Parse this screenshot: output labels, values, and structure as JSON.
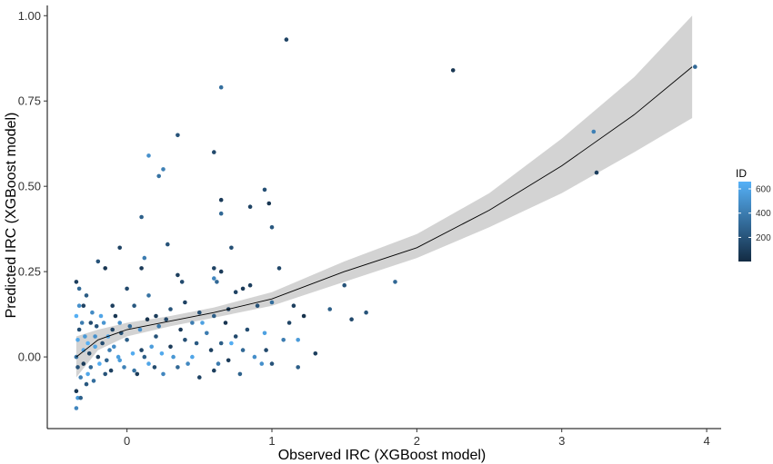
{
  "chart_data": {
    "type": "scatter",
    "title": "",
    "xlabel": "Observed IRC (XGBoost model)",
    "ylabel": "Predicted IRC (XGBoost model)",
    "xlim": [
      -0.55,
      4.1
    ],
    "ylim": [
      -0.21,
      1.03
    ],
    "x_ticks": [
      0,
      1,
      2,
      3,
      4
    ],
    "y_ticks": [
      0.0,
      0.25,
      0.5,
      0.75,
      1.0
    ],
    "x_tick_labels": [
      "0",
      "1",
      "2",
      "3",
      "4"
    ],
    "y_tick_labels": [
      "0.00",
      "0.25",
      "0.50",
      "0.75",
      "1.00"
    ],
    "grid": false,
    "legend": {
      "title": "ID",
      "placement": "right",
      "range": [
        1,
        660
      ],
      "ticks": [
        200,
        400,
        600
      ],
      "tick_labels": [
        "200",
        "400",
        "600"
      ],
      "colors": [
        "#132B43",
        "#56B1F7"
      ]
    },
    "smooth": {
      "color": "#000000",
      "band_color": "#D3D3D3",
      "x": [
        -0.35,
        -0.2,
        0.0,
        0.3,
        0.6,
        1.0,
        1.5,
        2.0,
        2.5,
        3.0,
        3.5,
        3.9
      ],
      "y": [
        0.0,
        0.05,
        0.08,
        0.105,
        0.13,
        0.17,
        0.25,
        0.32,
        0.43,
        0.56,
        0.71,
        0.85
      ],
      "lower": [
        -0.06,
        0.02,
        0.06,
        0.09,
        0.115,
        0.15,
        0.22,
        0.29,
        0.38,
        0.48,
        0.6,
        0.7
      ],
      "upper": [
        0.06,
        0.08,
        0.1,
        0.12,
        0.145,
        0.19,
        0.28,
        0.36,
        0.48,
        0.64,
        0.82,
        1.0
      ]
    },
    "points": [
      {
        "x": 1.1,
        "y": 0.93,
        "id": 120
      },
      {
        "x": 2.25,
        "y": 0.84,
        "id": 60
      },
      {
        "x": 3.92,
        "y": 0.85,
        "id": 300
      },
      {
        "x": 0.65,
        "y": 0.79,
        "id": 330
      },
      {
        "x": 3.22,
        "y": 0.66,
        "id": 420
      },
      {
        "x": 3.24,
        "y": 0.54,
        "id": 100
      },
      {
        "x": 0.35,
        "y": 0.65,
        "id": 200
      },
      {
        "x": 0.15,
        "y": 0.59,
        "id": 500
      },
      {
        "x": 0.22,
        "y": 0.53,
        "id": 350
      },
      {
        "x": 0.25,
        "y": 0.55,
        "id": 420
      },
      {
        "x": 0.6,
        "y": 0.6,
        "id": 150
      },
      {
        "x": 0.95,
        "y": 0.49,
        "id": 180
      },
      {
        "x": 0.65,
        "y": 0.46,
        "id": 80
      },
      {
        "x": 0.85,
        "y": 0.44,
        "id": 120
      },
      {
        "x": 0.1,
        "y": 0.41,
        "id": 260
      },
      {
        "x": 0.65,
        "y": 0.42,
        "id": 300
      },
      {
        "x": 1.0,
        "y": 0.38,
        "id": 220
      },
      {
        "x": 0.98,
        "y": 0.45,
        "id": 60
      },
      {
        "x": 0.28,
        "y": 0.33,
        "id": 200
      },
      {
        "x": 0.72,
        "y": 0.32,
        "id": 180
      },
      {
        "x": -0.05,
        "y": 0.32,
        "id": 120
      },
      {
        "x": 0.12,
        "y": 0.29,
        "id": 400
      },
      {
        "x": 0.1,
        "y": 0.26,
        "id": 80
      },
      {
        "x": 0.35,
        "y": 0.24,
        "id": 100
      },
      {
        "x": 0.6,
        "y": 0.26,
        "id": 120
      },
      {
        "x": 0.65,
        "y": 0.25,
        "id": 80
      },
      {
        "x": 1.05,
        "y": 0.26,
        "id": 140
      },
      {
        "x": 0.6,
        "y": 0.23,
        "id": 450
      },
      {
        "x": 0.62,
        "y": 0.22,
        "id": 300
      },
      {
        "x": 0.38,
        "y": 0.22,
        "id": 160
      },
      {
        "x": -0.15,
        "y": 0.26,
        "id": 60
      },
      {
        "x": -0.2,
        "y": 0.28,
        "id": 200
      },
      {
        "x": 0.75,
        "y": 0.19,
        "id": 120
      },
      {
        "x": 0.8,
        "y": 0.2,
        "id": 80
      },
      {
        "x": 0.85,
        "y": 0.21,
        "id": 100
      },
      {
        "x": 1.5,
        "y": 0.21,
        "id": 200
      },
      {
        "x": 1.85,
        "y": 0.22,
        "id": 300
      },
      {
        "x": 1.4,
        "y": 0.14,
        "id": 250
      },
      {
        "x": 1.65,
        "y": 0.13,
        "id": 200
      },
      {
        "x": 1.55,
        "y": 0.11,
        "id": 150
      },
      {
        "x": 1.15,
        "y": 0.15,
        "id": 100
      },
      {
        "x": 1.0,
        "y": 0.16,
        "id": 330
      },
      {
        "x": 0.9,
        "y": 0.15,
        "id": 200
      },
      {
        "x": 0.7,
        "y": 0.14,
        "id": 100
      },
      {
        "x": 0.6,
        "y": 0.12,
        "id": 250
      },
      {
        "x": 0.5,
        "y": 0.13,
        "id": 180
      },
      {
        "x": 0.45,
        "y": 0.1,
        "id": 400
      },
      {
        "x": 0.4,
        "y": 0.16,
        "id": 120
      },
      {
        "x": 0.3,
        "y": 0.14,
        "id": 200
      },
      {
        "x": 0.2,
        "y": 0.12,
        "id": 90
      },
      {
        "x": 0.15,
        "y": 0.18,
        "id": 350
      },
      {
        "x": 0.05,
        "y": 0.15,
        "id": 220
      },
      {
        "x": 0.0,
        "y": 0.2,
        "id": 150
      },
      {
        "x": -0.05,
        "y": 0.1,
        "id": 500
      },
      {
        "x": -0.1,
        "y": 0.15,
        "id": 100
      },
      {
        "x": 0.95,
        "y": 0.07,
        "id": 580
      },
      {
        "x": 1.08,
        "y": 0.05,
        "id": 400
      },
      {
        "x": 1.18,
        "y": 0.05,
        "id": 550
      },
      {
        "x": 1.18,
        "y": -0.03,
        "id": 250
      },
      {
        "x": 1.3,
        "y": 0.01,
        "id": 100
      },
      {
        "x": 1.0,
        "y": -0.02,
        "id": 200
      },
      {
        "x": 0.96,
        "y": 0.02,
        "id": 150
      },
      {
        "x": 0.93,
        "y": -0.02,
        "id": 500
      },
      {
        "x": 0.8,
        "y": 0.02,
        "id": 300
      },
      {
        "x": 0.75,
        "y": 0.06,
        "id": 150
      },
      {
        "x": 0.7,
        "y": -0.01,
        "id": 80
      },
      {
        "x": 0.65,
        "y": 0.04,
        "id": 250
      },
      {
        "x": 0.6,
        "y": -0.04,
        "id": 100
      },
      {
        "x": 0.55,
        "y": 0.07,
        "id": 400
      },
      {
        "x": 0.5,
        "y": -0.06,
        "id": 120
      },
      {
        "x": 0.45,
        "y": 0.0,
        "id": 600
      },
      {
        "x": 0.4,
        "y": 0.05,
        "id": 180
      },
      {
        "x": 0.35,
        "y": -0.03,
        "id": 300
      },
      {
        "x": 0.3,
        "y": 0.03,
        "id": 80
      },
      {
        "x": 0.25,
        "y": -0.05,
        "id": 450
      },
      {
        "x": 0.2,
        "y": 0.06,
        "id": 200
      },
      {
        "x": 0.15,
        "y": -0.02,
        "id": 600
      },
      {
        "x": 0.1,
        "y": 0.02,
        "id": 140
      },
      {
        "x": 0.05,
        "y": -0.04,
        "id": 350
      },
      {
        "x": 0.0,
        "y": 0.05,
        "id": 250
      },
      {
        "x": -0.05,
        "y": -0.01,
        "id": 550
      },
      {
        "x": -0.1,
        "y": 0.08,
        "id": 120
      },
      {
        "x": -0.12,
        "y": 0.02,
        "id": 400
      },
      {
        "x": -0.15,
        "y": -0.05,
        "id": 200
      },
      {
        "x": -0.18,
        "y": 0.12,
        "id": 600
      },
      {
        "x": -0.2,
        "y": 0.0,
        "id": 90
      },
      {
        "x": -0.22,
        "y": 0.06,
        "id": 500
      },
      {
        "x": -0.25,
        "y": -0.03,
        "id": 300
      },
      {
        "x": -0.25,
        "y": 0.1,
        "id": 150
      },
      {
        "x": -0.27,
        "y": 0.04,
        "id": 650
      },
      {
        "x": -0.28,
        "y": -0.08,
        "id": 220
      },
      {
        "x": -0.3,
        "y": 0.15,
        "id": 120
      },
      {
        "x": -0.3,
        "y": 0.02,
        "id": 600
      },
      {
        "x": -0.32,
        "y": -0.06,
        "id": 420
      },
      {
        "x": -0.33,
        "y": 0.2,
        "id": 300
      },
      {
        "x": -0.33,
        "y": 0.08,
        "id": 180
      },
      {
        "x": -0.34,
        "y": -0.12,
        "id": 550
      },
      {
        "x": -0.35,
        "y": 0.22,
        "id": 100
      },
      {
        "x": -0.35,
        "y": 0.12,
        "id": 650
      },
      {
        "x": -0.35,
        "y": 0.0,
        "id": 350
      },
      {
        "x": -0.35,
        "y": -0.1,
        "id": 60
      },
      {
        "x": -0.35,
        "y": -0.15,
        "id": 450
      },
      {
        "x": -0.34,
        "y": 0.05,
        "id": 620
      },
      {
        "x": -0.34,
        "y": -0.03,
        "id": 200
      },
      {
        "x": -0.33,
        "y": 0.15,
        "id": 500
      },
      {
        "x": -0.32,
        "y": -0.12,
        "id": 260
      },
      {
        "x": -0.31,
        "y": 0.1,
        "id": 400
      },
      {
        "x": -0.3,
        "y": -0.02,
        "id": 80
      },
      {
        "x": -0.29,
        "y": 0.06,
        "id": 540
      },
      {
        "x": -0.28,
        "y": 0.18,
        "id": 240
      },
      {
        "x": -0.27,
        "y": -0.05,
        "id": 610
      },
      {
        "x": -0.26,
        "y": 0.01,
        "id": 130
      },
      {
        "x": -0.24,
        "y": 0.13,
        "id": 470
      },
      {
        "x": -0.23,
        "y": -0.07,
        "id": 330
      },
      {
        "x": -0.22,
        "y": 0.03,
        "id": 590
      },
      {
        "x": -0.21,
        "y": 0.09,
        "id": 210
      },
      {
        "x": -0.19,
        "y": -0.02,
        "id": 640
      },
      {
        "x": -0.17,
        "y": 0.04,
        "id": 170
      },
      {
        "x": -0.16,
        "y": 0.1,
        "id": 520
      },
      {
        "x": -0.14,
        "y": -0.01,
        "id": 280
      },
      {
        "x": -0.13,
        "y": 0.06,
        "id": 600
      },
      {
        "x": -0.11,
        "y": -0.04,
        "id": 110
      },
      {
        "x": -0.09,
        "y": 0.03,
        "id": 480
      },
      {
        "x": -0.08,
        "y": 0.12,
        "id": 60
      },
      {
        "x": -0.06,
        "y": 0.0,
        "id": 570
      },
      {
        "x": -0.04,
        "y": 0.07,
        "id": 190
      },
      {
        "x": -0.02,
        "y": -0.03,
        "id": 430
      },
      {
        "x": 0.02,
        "y": 0.09,
        "id": 310
      },
      {
        "x": 0.04,
        "y": 0.01,
        "id": 630
      },
      {
        "x": 0.07,
        "y": -0.05,
        "id": 90
      },
      {
        "x": 0.09,
        "y": 0.08,
        "id": 510
      },
      {
        "x": 0.12,
        "y": 0.0,
        "id": 250
      },
      {
        "x": 0.14,
        "y": 0.11,
        "id": 40
      },
      {
        "x": 0.17,
        "y": 0.03,
        "id": 560
      },
      {
        "x": 0.19,
        "y": -0.03,
        "id": 160
      },
      {
        "x": 0.22,
        "y": 0.09,
        "id": 380
      },
      {
        "x": 0.24,
        "y": 0.01,
        "id": 620
      },
      {
        "x": 0.27,
        "y": 0.11,
        "id": 140
      },
      {
        "x": 0.32,
        "y": 0.0,
        "id": 530
      },
      {
        "x": 0.37,
        "y": 0.08,
        "id": 70
      },
      {
        "x": 0.42,
        "y": -0.02,
        "id": 460
      },
      {
        "x": 0.48,
        "y": 0.04,
        "id": 230
      },
      {
        "x": 0.52,
        "y": 0.1,
        "id": 580
      },
      {
        "x": 0.58,
        "y": 0.02,
        "id": 110
      },
      {
        "x": 0.63,
        "y": -0.02,
        "id": 390
      },
      {
        "x": 0.68,
        "y": 0.1,
        "id": 50
      },
      {
        "x": 0.72,
        "y": 0.04,
        "id": 640
      },
      {
        "x": 0.78,
        "y": -0.05,
        "id": 270
      },
      {
        "x": 0.83,
        "y": 0.08,
        "id": 170
      },
      {
        "x": 0.88,
        "y": 0.0,
        "id": 490
      },
      {
        "x": 1.12,
        "y": 0.1,
        "id": 130
      },
      {
        "x": 1.22,
        "y": 0.12,
        "id": 30
      }
    ]
  }
}
